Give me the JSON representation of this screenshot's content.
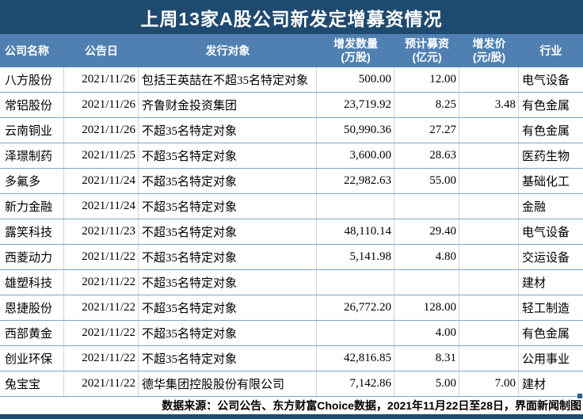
{
  "title": "上周13家A股公司新发定增募资情况",
  "table": {
    "columns": [
      {
        "label": "公司名称",
        "sub": ""
      },
      {
        "label": "公告日",
        "sub": ""
      },
      {
        "label": "发行对象",
        "sub": ""
      },
      {
        "label": "增发数量",
        "sub": "(万股)"
      },
      {
        "label": "预计募资",
        "sub": "(亿元)"
      },
      {
        "label": "增发价",
        "sub": "(元/股)"
      },
      {
        "label": "行业",
        "sub": ""
      }
    ],
    "rows": [
      [
        "八方股份",
        "2021/11/26",
        "包括王英喆在不超35名特定对象",
        "500.00",
        "12.00",
        "",
        "电气设备"
      ],
      [
        "常铝股份",
        "2021/11/26",
        "齐鲁财金投资集团",
        "23,719.92",
        "8.25",
        "3.48",
        "有色金属"
      ],
      [
        "云南铜业",
        "2021/11/26",
        "不超35名特定对象",
        "50,990.36",
        "27.27",
        "",
        "有色金属"
      ],
      [
        "泽璟制药",
        "2021/11/25",
        "不超35名特定对象",
        "3,600.00",
        "28.63",
        "",
        "医药生物"
      ],
      [
        "多氟多",
        "2021/11/24",
        "不超35名特定对象",
        "22,982.63",
        "55.00",
        "",
        "基础化工"
      ],
      [
        "新力金融",
        "2021/11/24",
        "不超35名特定对象",
        "",
        "",
        "",
        "金融"
      ],
      [
        "露笑科技",
        "2021/11/23",
        "不超35名特定对象",
        "48,110.14",
        "29.40",
        "",
        "电气设备"
      ],
      [
        "西菱动力",
        "2021/11/22",
        "不超35名特定对象",
        "5,141.98",
        "4.80",
        "",
        "交运设备"
      ],
      [
        "雄塑科技",
        "2021/11/22",
        "不超35名特定对象",
        "",
        "",
        "",
        "建材"
      ],
      [
        "恩捷股份",
        "2021/11/22",
        "不超35名特定对象",
        "26,772.20",
        "128.00",
        "",
        "轻工制造"
      ],
      [
        "西部黄金",
        "2021/11/22",
        "不超35名特定对象",
        "",
        "4.00",
        "",
        "有色金属"
      ],
      [
        "创业环保",
        "2021/11/22",
        "不超35名特定对象",
        "42,816.85",
        "8.31",
        "",
        "公用事业"
      ],
      [
        "兔宝宝",
        "2021/11/22",
        "德华集团控股股份有限公司",
        "7,142.86",
        "5.00",
        "7.00",
        "建材"
      ]
    ]
  },
  "footer": "数据来源：公司公告、东方财富Choice数据，2021年11月22日至28日，界面新闻制图",
  "colors": {
    "title_bg": "#1f4a70",
    "header_bg": "#5080b2",
    "header_text": "#ffffff",
    "row_divider": "#7fa5c7",
    "column_divider": "#c9d4e0",
    "body_text": "#000000",
    "bottom_bar": "#1f4a70"
  },
  "chart_data": {
    "type": "table",
    "title": "上周13家A股公司新发定增募资情况",
    "columns": [
      "公司名称",
      "公告日",
      "发行对象",
      "增发数量(万股)",
      "预计募资(亿元)",
      "增发价(元/股)",
      "行业"
    ],
    "rows": [
      [
        "八方股份",
        "2021/11/26",
        "包括王英喆在不超35名特定对象",
        500.0,
        12.0,
        null,
        "电气设备"
      ],
      [
        "常铝股份",
        "2021/11/26",
        "齐鲁财金投资集团",
        23719.92,
        8.25,
        3.48,
        "有色金属"
      ],
      [
        "云南铜业",
        "2021/11/26",
        "不超35名特定对象",
        50990.36,
        27.27,
        null,
        "有色金属"
      ],
      [
        "泽璟制药",
        "2021/11/25",
        "不超35名特定对象",
        3600.0,
        28.63,
        null,
        "医药生物"
      ],
      [
        "多氟多",
        "2021/11/24",
        "不超35名特定对象",
        22982.63,
        55.0,
        null,
        "基础化工"
      ],
      [
        "新力金融",
        "2021/11/24",
        "不超35名特定对象",
        null,
        null,
        null,
        "金融"
      ],
      [
        "露笑科技",
        "2021/11/23",
        "不超35名特定对象",
        48110.14,
        29.4,
        null,
        "电气设备"
      ],
      [
        "西菱动力",
        "2021/11/22",
        "不超35名特定对象",
        5141.98,
        4.8,
        null,
        "交运设备"
      ],
      [
        "雄塑科技",
        "2021/11/22",
        "不超35名特定对象",
        null,
        null,
        null,
        "建材"
      ],
      [
        "恩捷股份",
        "2021/11/22",
        "不超35名特定对象",
        26772.2,
        128.0,
        null,
        "轻工制造"
      ],
      [
        "西部黄金",
        "2021/11/22",
        "不超35名特定对象",
        null,
        4.0,
        null,
        "有色金属"
      ],
      [
        "创业环保",
        "2021/11/22",
        "不超35名特定对象",
        42816.85,
        8.31,
        null,
        "公用事业"
      ],
      [
        "兔宝宝",
        "2021/11/22",
        "德华集团控股股份有限公司",
        7142.86,
        5.0,
        7.0,
        "建材"
      ]
    ],
    "source_note": "数据来源：公司公告、东方财富Choice数据，2021年11月22日至28日，界面新闻制图"
  }
}
